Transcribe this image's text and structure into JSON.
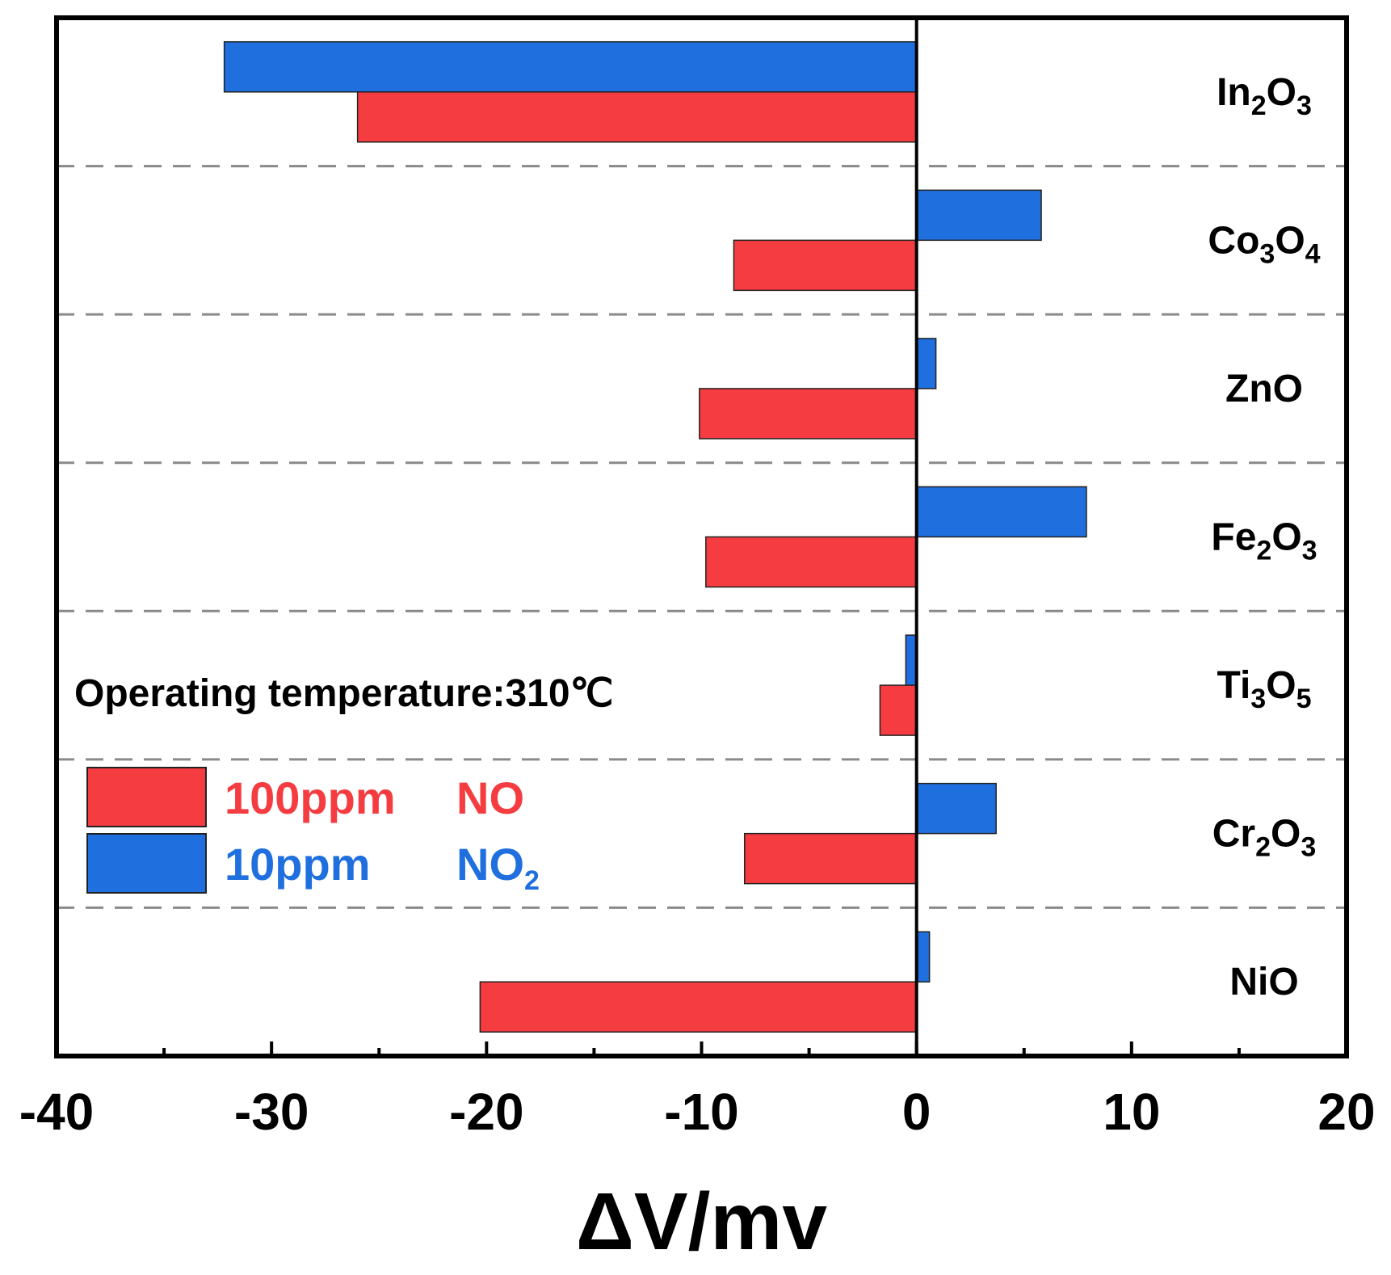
{
  "chart_data": {
    "type": "bar",
    "orientation": "horizontal",
    "categories": [
      {
        "name": "In2O3",
        "parts": [
          [
            "In",
            false
          ],
          [
            "2",
            true
          ],
          [
            "O",
            false
          ],
          [
            "3",
            true
          ]
        ]
      },
      {
        "name": "Co3O4",
        "parts": [
          [
            "Co",
            false
          ],
          [
            "3",
            true
          ],
          [
            "O",
            false
          ],
          [
            "4",
            true
          ]
        ]
      },
      {
        "name": "ZnO",
        "parts": [
          [
            "ZnO",
            false
          ]
        ]
      },
      {
        "name": "Fe2O3",
        "parts": [
          [
            "Fe",
            false
          ],
          [
            "2",
            true
          ],
          [
            "O",
            false
          ],
          [
            "3",
            true
          ]
        ]
      },
      {
        "name": "Ti3O5",
        "parts": [
          [
            "Ti",
            false
          ],
          [
            "3",
            true
          ],
          [
            "O",
            false
          ],
          [
            "5",
            true
          ]
        ]
      },
      {
        "name": "Cr2O3",
        "parts": [
          [
            "Cr",
            false
          ],
          [
            "2",
            true
          ],
          [
            "O",
            false
          ],
          [
            "3",
            true
          ]
        ]
      },
      {
        "name": "NiO",
        "parts": [
          [
            "NiO",
            false
          ]
        ]
      }
    ],
    "series": [
      {
        "name": "10ppm NO2",
        "color": "#1f6fde",
        "values": [
          -32.2,
          5.8,
          0.9,
          7.9,
          -0.5,
          3.7,
          0.6
        ]
      },
      {
        "name": "100ppm NO",
        "color": "#f53c40",
        "values": [
          -26.0,
          -8.5,
          -10.1,
          -9.8,
          -1.7,
          -8.0,
          -20.3
        ]
      }
    ],
    "xlim": [
      -40,
      20
    ],
    "xticks": [
      "-40",
      "-30",
      "-20",
      "-10",
      "0",
      "10",
      "20"
    ],
    "xlabel": "ΔV/mv",
    "annotation": "Operating temperature:310℃",
    "legend": [
      {
        "series": "100ppm NO",
        "color": "#f53c40",
        "conc": "100ppm",
        "gas": [
          [
            "NO",
            false
          ]
        ]
      },
      {
        "series": "10ppm NO2",
        "color": "#1f6fde",
        "conc": "10ppm",
        "gas": [
          [
            "NO",
            false
          ],
          [
            "2",
            true
          ]
        ]
      }
    ],
    "legend_position": "left"
  }
}
